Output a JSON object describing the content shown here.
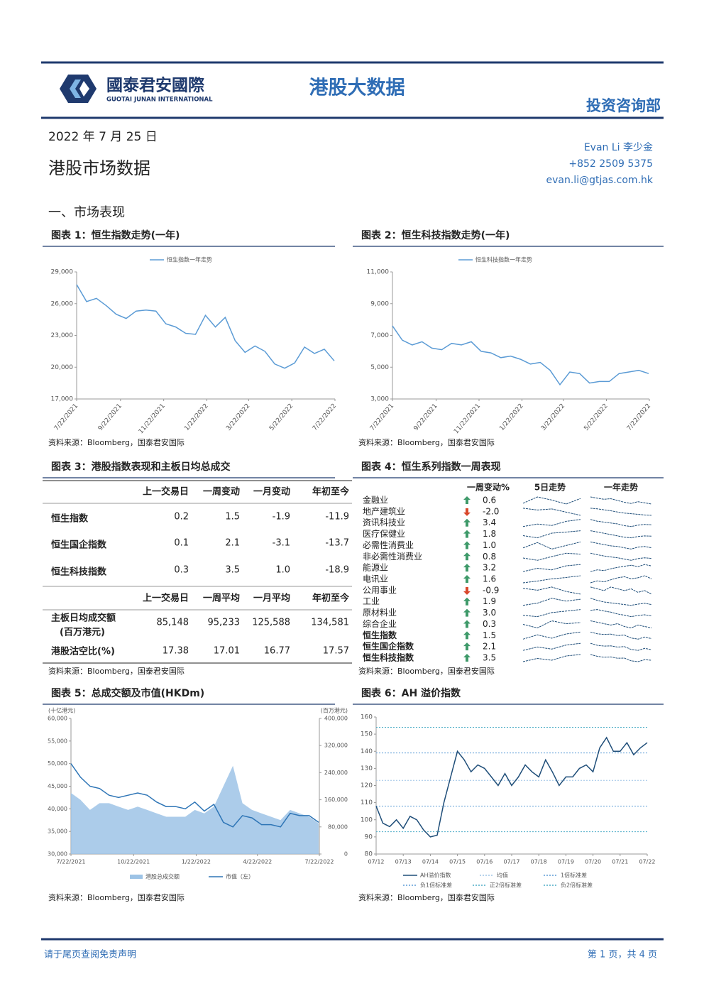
{
  "header": {
    "logo_cn": "國泰君安國際",
    "logo_en": "GUOTAI JUNAN INTERNATIONAL",
    "title": "港股大数据",
    "dept": "投资咨询部"
  },
  "date": "2022 年 7 月 25 日",
  "report_title": "港股市场数据",
  "author": {
    "name": "Evan Li  李少金",
    "phone": "+852 2509 5375",
    "email": "evan.li@gtjas.com.hk"
  },
  "section": "一、市场表现",
  "chart_data": [
    {
      "type": "line",
      "title": "图表 1：恒生指数走势(一年)",
      "source": "资料来源：Bloomberg，国泰君安国际",
      "x": [
        "7/22/2021",
        "8/5/2021",
        "8/19/2021",
        "9/2/2021",
        "9/16/2021",
        "9/30/2021",
        "10/14/2021",
        "10/28/2021",
        "11/11/2021",
        "11/25/2021",
        "12/9/2021",
        "12/23/2021",
        "1/6/2022",
        "1/20/2022",
        "2/3/2022",
        "2/17/2022",
        "3/3/2022",
        "3/17/2022",
        "3/31/2022",
        "4/14/2022",
        "4/28/2022",
        "5/12/2022",
        "5/26/2022",
        "6/9/2022",
        "6/23/2022",
        "7/7/2022",
        "7/21/2022"
      ],
      "xlim": [
        "7/22/2021",
        "7/22/2022"
      ],
      "xticks": [
        "7/22/2021",
        "9/22/2021",
        "11/22/2021",
        "1/22/2022",
        "3/22/2022",
        "5/22/2022",
        "7/22/2022"
      ],
      "ylim": [
        17000,
        29000
      ],
      "yticks": [
        {
          "value": 17000,
          "label": "17,000"
        },
        {
          "value": 20000,
          "label": "20,000"
        },
        {
          "value": 23000,
          "label": "23,000"
        },
        {
          "value": 26000,
          "label": "26,000"
        },
        {
          "value": 29000,
          "label": "29,000"
        }
      ],
      "series": [
        {
          "name": "恒生指数一年走势",
          "color": "#5b9bd5",
          "values": [
            27800,
            26200,
            26500,
            25800,
            25000,
            24600,
            25300,
            25400,
            25300,
            24100,
            23800,
            23200,
            23100,
            24900,
            23800,
            24700,
            22500,
            21400,
            22000,
            21500,
            20300,
            19900,
            20400,
            21900,
            21300,
            21700,
            20600
          ]
        }
      ]
    },
    {
      "type": "line",
      "title": "图表 2：恒生科技指数走势(一年)",
      "source": "资料来源：Bloomberg，国泰君安国际",
      "x": [
        "7/22/2021",
        "8/5/2021",
        "8/19/2021",
        "9/2/2021",
        "9/16/2021",
        "9/30/2021",
        "10/14/2021",
        "10/28/2021",
        "11/11/2021",
        "11/25/2021",
        "12/9/2021",
        "12/23/2021",
        "1/6/2022",
        "1/20/2022",
        "2/3/2022",
        "2/17/2022",
        "3/3/2022",
        "3/17/2022",
        "3/31/2022",
        "4/14/2022",
        "4/28/2022",
        "5/12/2022",
        "5/26/2022",
        "6/9/2022",
        "6/23/2022",
        "7/7/2022",
        "7/21/2022"
      ],
      "xlim": [
        "7/22/2021",
        "7/22/2022"
      ],
      "xticks": [
        "7/22/2021",
        "9/22/2021",
        "11/22/2021",
        "1/22/2022",
        "3/22/2022",
        "5/22/2022",
        "7/22/2022"
      ],
      "ylim": [
        3000,
        11000
      ],
      "yticks": [
        {
          "value": 3000,
          "label": "3,000"
        },
        {
          "value": 5000,
          "label": "5,000"
        },
        {
          "value": 7000,
          "label": "7,000"
        },
        {
          "value": 9000,
          "label": "9,000"
        },
        {
          "value": 11000,
          "label": "11,000"
        }
      ],
      "series": [
        {
          "name": "恒生科技指数一年走势",
          "color": "#5b9bd5",
          "values": [
            7600,
            6700,
            6400,
            6600,
            6200,
            6100,
            6500,
            6400,
            6600,
            6000,
            5900,
            5600,
            5700,
            5500,
            5200,
            5300,
            4800,
            3900,
            4700,
            4600,
            4000,
            4100,
            4100,
            4600,
            4700,
            4800,
            4600
          ]
        }
      ]
    },
    {
      "type": "line",
      "title": "图表 5：总成交额及市值(HKDm)",
      "source": "资料来源：Bloomberg，国泰君安国际",
      "y_unit": "(十亿港元)",
      "y2_unit": "(百万港元)",
      "x": [
        "7/22/2021",
        "8/5/2021",
        "8/19/2021",
        "9/2/2021",
        "9/16/2021",
        "9/30/2021",
        "10/14/2021",
        "10/28/2021",
        "11/11/2021",
        "11/25/2021",
        "12/9/2021",
        "12/23/2021",
        "1/6/2022",
        "1/20/2022",
        "2/3/2022",
        "2/17/2022",
        "3/3/2022",
        "3/17/2022",
        "3/31/2022",
        "4/14/2022",
        "4/28/2022",
        "5/12/2022",
        "5/26/2022",
        "6/9/2022",
        "6/23/2022",
        "7/7/2022",
        "7/21/2022"
      ],
      "xlim": [
        "7/22/2021",
        "7/22/2022"
      ],
      "xticks": [
        "7/22/2021",
        "10/22/2021",
        "1/22/2022",
        "4/22/2022",
        "7/22/2022"
      ],
      "ylim": [
        30000,
        60000
      ],
      "yticks": [
        {
          "value": 30000,
          "label": "30,000"
        },
        {
          "value": 35000,
          "label": "35,000"
        },
        {
          "value": 40000,
          "label": "40,000"
        },
        {
          "value": 45000,
          "label": "45,000"
        },
        {
          "value": 50000,
          "label": "50,000"
        },
        {
          "value": 55000,
          "label": "55,000"
        },
        {
          "value": 60000,
          "label": "60,000"
        }
      ],
      "y2lim": [
        0,
        400000
      ],
      "y2ticks": [
        0,
        {
          "value": 80000,
          "label": "80,000"
        },
        {
          "value": 160000,
          "label": "160,000"
        },
        {
          "value": 240000,
          "label": "240,000"
        },
        {
          "value": 320000,
          "label": "320,000"
        },
        {
          "value": 400000,
          "label": "400,000"
        }
      ],
      "series": [
        {
          "name": "港股总成交额",
          "color": "#9dc3e6",
          "axis": "y2",
          "style": "area",
          "values": [
            180000,
            160000,
            130000,
            150000,
            150000,
            140000,
            130000,
            140000,
            130000,
            120000,
            110000,
            110000,
            110000,
            130000,
            120000,
            140000,
            200000,
            260000,
            150000,
            130000,
            120000,
            110000,
            100000,
            130000,
            120000,
            110000,
            90000
          ]
        },
        {
          "name": "市值（左）",
          "color": "#2e75b6",
          "values": [
            50000,
            47000,
            45000,
            44500,
            43000,
            42500,
            43000,
            43500,
            43000,
            41500,
            40500,
            40500,
            40000,
            41500,
            39500,
            41000,
            37000,
            36000,
            38500,
            38000,
            36500,
            36500,
            36000,
            39000,
            38500,
            38500,
            37000
          ]
        }
      ]
    },
    {
      "type": "line",
      "title": "图表 6：AH 溢价指数",
      "source": "资料来源：Bloomberg，国泰君安国际",
      "x": [
        0,
        0.25,
        0.5,
        0.75,
        1,
        1.25,
        1.5,
        1.75,
        2,
        2.25,
        2.5,
        2.75,
        3,
        3.25,
        3.5,
        3.75,
        4,
        4.25,
        4.5,
        4.75,
        5,
        5.25,
        5.5,
        5.75,
        6,
        6.25,
        6.5,
        6.75,
        7,
        7.25,
        7.5,
        7.75,
        8,
        8.25,
        8.5,
        8.75,
        9,
        9.25,
        9.5,
        9.75,
        10
      ],
      "xlim": [
        0,
        10
      ],
      "xticks": [
        {
          "value": 0,
          "label": "07/12"
        },
        {
          "value": 1,
          "label": "07/13"
        },
        {
          "value": 2,
          "label": "07/14"
        },
        {
          "value": 3,
          "label": "07/15"
        },
        {
          "value": 4,
          "label": "07/16"
        },
        {
          "value": 5,
          "label": "07/17"
        },
        {
          "value": 6,
          "label": "07/18"
        },
        {
          "value": 7,
          "label": "07/19"
        },
        {
          "value": 8,
          "label": "07/20"
        },
        {
          "value": 9,
          "label": "07/21"
        },
        {
          "value": 10,
          "label": "07/22"
        }
      ],
      "ylim": [
        80,
        160
      ],
      "yticks": [
        80,
        90,
        100,
        110,
        120,
        130,
        140,
        150,
        160
      ],
      "series": [
        {
          "name": "AH溢价指数",
          "color": "#1f4e79",
          "values": [
            108,
            98,
            96,
            100,
            95,
            102,
            100,
            94,
            90,
            91,
            110,
            125,
            140,
            135,
            128,
            132,
            130,
            125,
            120,
            127,
            120,
            125,
            132,
            128,
            125,
            135,
            128,
            120,
            125,
            125,
            130,
            132,
            128,
            142,
            148,
            140,
            140,
            145,
            138,
            142,
            145
          ]
        }
      ],
      "reference_lines": [
        {
          "name": "均值",
          "value": 123,
          "color": "#9dc3e6"
        },
        {
          "name": "1倍标准差",
          "value": 139,
          "color": "#5b9bd5"
        },
        {
          "name": "负1倍标准差",
          "value": 108,
          "color": "#5b9bd5"
        },
        {
          "name": "正2倍标准差",
          "value": 154,
          "color": "#4bacc6"
        },
        {
          "name": "负2倍标准差",
          "value": 93,
          "color": "#4bacc6"
        }
      ]
    }
  ],
  "market_table": {
    "title": "图表 3：港股指数表现和主板日均总成交",
    "source": "资料来源：Bloomberg，国泰君安国际",
    "header1": [
      "上一交易日",
      "一周变动",
      "一月变动",
      "年初至今"
    ],
    "rows1": [
      {
        "name": "恒生指数",
        "cells": [
          "0.2",
          "1.5",
          "-1.9",
          "-11.9"
        ]
      },
      {
        "name": "恒生国企指数",
        "cells": [
          "0.1",
          "2.1",
          "-3.1",
          "-13.7"
        ]
      },
      {
        "name": "恒生科技指数",
        "cells": [
          "0.3",
          "3.5",
          "1.0",
          "-18.9"
        ]
      }
    ],
    "header2": [
      "上一交易日",
      "一周平均",
      "一月平均",
      "年初至今"
    ],
    "rows2": [
      {
        "name": "主板日均成交额",
        "note": "(百万港元)",
        "cells": [
          "85,148",
          "95,233",
          "125,588",
          "134,581"
        ]
      },
      {
        "name": "港股沽空比(%)",
        "cells": [
          "17.38",
          "17.01",
          "16.77",
          "17.57"
        ]
      }
    ]
  },
  "sector_table": {
    "title": "图表 4：恒生系列指数一周表现",
    "source": "资料来源：Bloomberg，国泰君安国际",
    "headers": [
      "一周变动%",
      "5日走势",
      "一年走势"
    ],
    "rows": [
      {
        "name": "金融业",
        "change": "0.6",
        "week5": [
          100,
          100.8,
          100.4,
          99.9,
          100.6
        ],
        "year": [
          112,
          110,
          108,
          109,
          106,
          103,
          101,
          104,
          102,
          100
        ]
      },
      {
        "name": "地产建筑业",
        "change": "-2.0",
        "week5": [
          100,
          99.5,
          99.8,
          98.9,
          98.0
        ],
        "year": [
          120,
          118,
          115,
          112,
          108,
          105,
          103,
          101,
          99,
          98
        ]
      },
      {
        "name": "资讯科技业",
        "change": "3.4",
        "week5": [
          100,
          101.2,
          100.5,
          102.5,
          103.4
        ],
        "year": [
          130,
          120,
          115,
          110,
          105,
          95,
          90,
          98,
          102,
          100
        ]
      },
      {
        "name": "医疗保健业",
        "change": "1.8",
        "week5": [
          100,
          99.2,
          100.9,
          101.3,
          101.8
        ],
        "year": [
          140,
          130,
          120,
          110,
          100,
          90,
          85,
          95,
          100,
          98
        ]
      },
      {
        "name": "必需性消费业",
        "change": "1.0",
        "week5": [
          100,
          100.9,
          99.8,
          100.4,
          101.0
        ],
        "year": [
          110,
          108,
          106,
          104,
          103,
          101,
          99,
          102,
          103,
          101
        ]
      },
      {
        "name": "非必需性消费业",
        "change": "0.8",
        "week5": [
          100,
          99.5,
          100.3,
          101.0,
          100.8
        ],
        "year": [
          125,
          118,
          112,
          108,
          104,
          98,
          92,
          100,
          104,
          101
        ]
      },
      {
        "name": "能源业",
        "change": "3.2",
        "week5": [
          100,
          101.5,
          100.8,
          102.6,
          103.2
        ],
        "year": [
          90,
          95,
          93,
          98,
          102,
          105,
          108,
          104,
          110,
          106
        ]
      },
      {
        "name": "电讯业",
        "change": "1.6",
        "week5": [
          100,
          100.4,
          100.9,
          101.2,
          101.6
        ],
        "year": [
          98,
          100,
          99,
          101,
          103,
          104,
          102,
          103,
          105,
          102
        ]
      },
      {
        "name": "公用事业",
        "change": "-0.9",
        "week5": [
          100,
          99.7,
          100.2,
          99.5,
          99.1
        ],
        "year": [
          104,
          103,
          102,
          104,
          103,
          102,
          103,
          101,
          102,
          100
        ]
      },
      {
        "name": "工业",
        "change": "1.9",
        "week5": [
          100,
          100.7,
          102.2,
          101.3,
          101.9
        ],
        "year": [
          115,
          110,
          106,
          104,
          102,
          100,
          98,
          101,
          103,
          100
        ]
      },
      {
        "name": "原材料业",
        "change": "3.0",
        "week5": [
          100,
          99.3,
          101.4,
          102.2,
          103.0
        ],
        "year": [
          110,
          112,
          108,
          105,
          100,
          97,
          93,
          96,
          98,
          95
        ]
      },
      {
        "name": "综合企业",
        "change": "0.3",
        "week5": [
          100,
          99.4,
          100.6,
          100.1,
          100.3
        ],
        "year": [
          106,
          105,
          104,
          103,
          104,
          102,
          101,
          103,
          102,
          101
        ]
      },
      {
        "name": "恒生指数",
        "change": "1.5",
        "bold": true,
        "week5": [
          100,
          100.9,
          100.2,
          101.1,
          101.5
        ],
        "year": [
          112,
          106,
          104,
          105,
          100,
          102,
          92,
          88,
          95,
          90
        ]
      },
      {
        "name": "恒生国企指数",
        "change": "2.1",
        "bold": true,
        "week5": [
          100,
          101.0,
          100.4,
          101.6,
          102.1
        ],
        "year": [
          114,
          106,
          103,
          104,
          99,
          101,
          90,
          86,
          94,
          89
        ]
      },
      {
        "name": "恒生科技指数",
        "change": "3.5",
        "bold": true,
        "week5": [
          100,
          101.6,
          100.7,
          102.8,
          103.5
        ],
        "year": [
          130,
          118,
          112,
          114,
          105,
          106,
          88,
          82,
          95,
          92
        ]
      }
    ]
  },
  "footer": {
    "disclaimer": "请于尾页查阅免责声明",
    "page": "第 1 页，共 4 页"
  }
}
